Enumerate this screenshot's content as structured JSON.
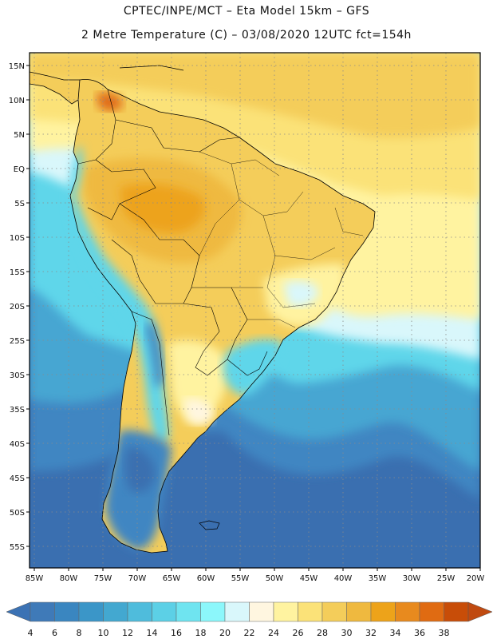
{
  "header": {
    "line1": "CPTEC/INPE/MCT –  Eta Model 15km – GFS",
    "line2": "2 Metre Temperature (C) – 03/08/2020 12UTC fct=154h"
  },
  "map": {
    "lat_labels": [
      "15N",
      "10N",
      "5N",
      "EQ",
      "5S",
      "10S",
      "15S",
      "20S",
      "25S",
      "30S",
      "35S",
      "40S",
      "45S",
      "50S",
      "55S"
    ],
    "lon_labels": [
      "85W",
      "80W",
      "75W",
      "70W",
      "65W",
      "60W",
      "55W",
      "50W",
      "45W",
      "40W",
      "35W",
      "30W",
      "25W",
      "20W"
    ]
  },
  "legend": {
    "ticks": [
      "4",
      "6",
      "8",
      "10",
      "12",
      "14",
      "16",
      "18",
      "20",
      "22",
      "24",
      "26",
      "28",
      "30",
      "32",
      "34",
      "36",
      "38"
    ],
    "colors": [
      "#3f7ab8",
      "#3a86c0",
      "#3b96c8",
      "#43a8d0",
      "#4fbcdc",
      "#5cd0e6",
      "#6fe4f0",
      "#8cf7fb",
      "#d9f7fb",
      "#fff6e0",
      "#fff3a0",
      "#fbe278",
      "#f4cd5a",
      "#efb93f",
      "#eda31a",
      "#e88a1e",
      "#e06b12",
      "#c84d08"
    ],
    "low_color": "#3b72b4",
    "high_color": "#c04a10"
  }
}
